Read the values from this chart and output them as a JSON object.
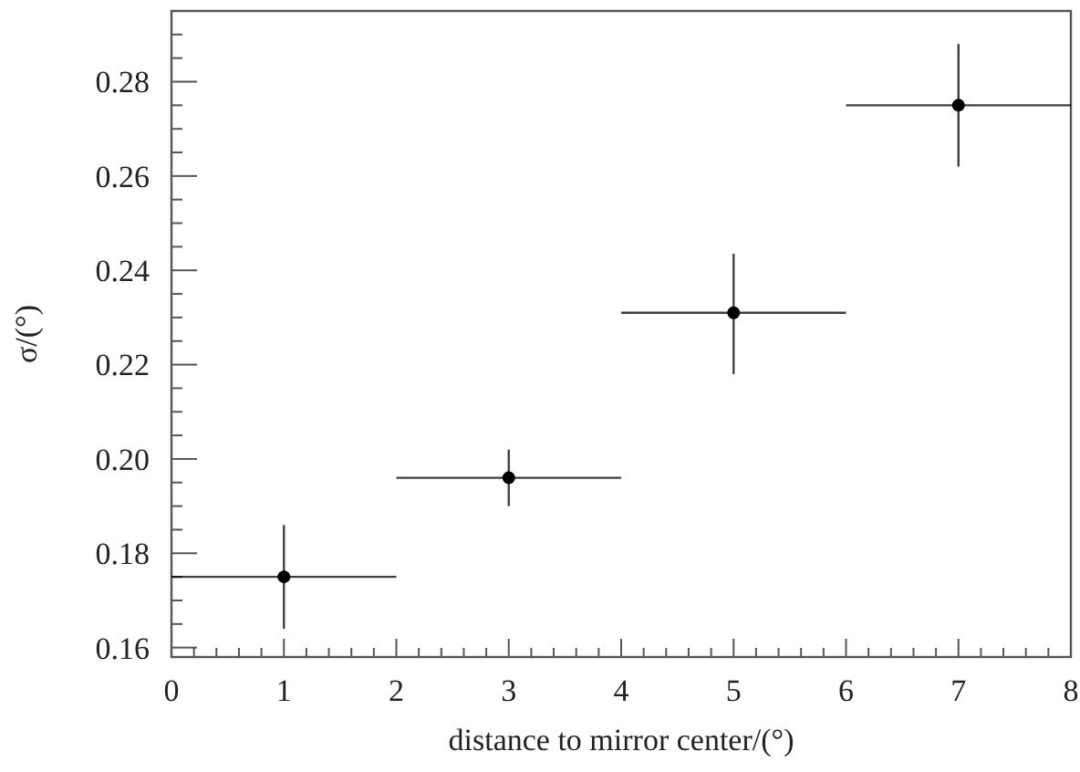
{
  "chart_data": {
    "type": "scatter",
    "xlabel": "distance to mirror center/(°)",
    "ylabel": "σ/(°)",
    "x": [
      1,
      3,
      5,
      7
    ],
    "series": [
      {
        "color": "#000000",
        "values": [
          0.175,
          0.196,
          0.231,
          0.275
        ],
        "errors": [
          [
            0.164,
            0.186
          ],
          [
            0.19,
            0.202
          ],
          [
            0.218,
            0.2435
          ],
          [
            0.262,
            0.288
          ]
        ],
        "xerrors": [
          1,
          1,
          1,
          1
        ]
      }
    ],
    "marker": "circle",
    "xlim": [
      0,
      8
    ],
    "ylim": [
      0.158,
      0.295
    ],
    "xticks": [
      0,
      {
        "value": 0.2,
        "label": null
      },
      {
        "value": 0.4,
        "label": null
      },
      {
        "value": 0.6,
        "label": null
      },
      {
        "value": 0.8,
        "label": null
      },
      1,
      {
        "value": 1.2,
        "label": null
      },
      {
        "value": 1.4,
        "label": null
      },
      {
        "value": 1.6,
        "label": null
      },
      {
        "value": 1.8,
        "label": null
      },
      2,
      {
        "value": 2.2,
        "label": null
      },
      {
        "value": 2.4,
        "label": null
      },
      {
        "value": 2.6,
        "label": null
      },
      {
        "value": 2.8,
        "label": null
      },
      3,
      {
        "value": 3.2,
        "label": null
      },
      {
        "value": 3.4,
        "label": null
      },
      {
        "value": 3.6,
        "label": null
      },
      {
        "value": 3.8,
        "label": null
      },
      4,
      {
        "value": 4.2,
        "label": null
      },
      {
        "value": 4.4,
        "label": null
      },
      {
        "value": 4.6,
        "label": null
      },
      {
        "value": 4.8,
        "label": null
      },
      5,
      {
        "value": 5.2,
        "label": null
      },
      {
        "value": 5.4,
        "label": null
      },
      {
        "value": 5.6,
        "label": null
      },
      {
        "value": 5.8,
        "label": null
      },
      6,
      {
        "value": 6.2,
        "label": null
      },
      {
        "value": 6.4,
        "label": null
      },
      {
        "value": 6.6,
        "label": null
      },
      {
        "value": 6.8,
        "label": null
      },
      7,
      {
        "value": 7.2,
        "label": null
      },
      {
        "value": 7.4,
        "label": null
      },
      {
        "value": 7.6,
        "label": null
      },
      {
        "value": 7.8,
        "label": null
      },
      8
    ],
    "yticks": [
      {
        "value": 0.16,
        "label": "0.16"
      },
      {
        "value": 0.165,
        "label": null
      },
      {
        "value": 0.17,
        "label": null
      },
      {
        "value": 0.175,
        "label": null
      },
      {
        "value": 0.18,
        "label": "0.18"
      },
      {
        "value": 0.185,
        "label": null
      },
      {
        "value": 0.19,
        "label": null
      },
      {
        "value": 0.195,
        "label": null
      },
      {
        "value": 0.2,
        "label": "0.20"
      },
      {
        "value": 0.205,
        "label": null
      },
      {
        "value": 0.21,
        "label": null
      },
      {
        "value": 0.215,
        "label": null
      },
      {
        "value": 0.22,
        "label": "0.22"
      },
      {
        "value": 0.225,
        "label": null
      },
      {
        "value": 0.23,
        "label": null
      },
      {
        "value": 0.235,
        "label": null
      },
      {
        "value": 0.24,
        "label": "0.24"
      },
      {
        "value": 0.245,
        "label": null
      },
      {
        "value": 0.25,
        "label": null
      },
      {
        "value": 0.255,
        "label": null
      },
      {
        "value": 0.26,
        "label": "0.26"
      },
      {
        "value": 0.265,
        "label": null
      },
      {
        "value": 0.27,
        "label": null
      },
      {
        "value": 0.275,
        "label": null
      },
      {
        "value": 0.28,
        "label": "0.28"
      },
      {
        "value": 0.285,
        "label": null
      },
      {
        "value": 0.29,
        "label": null
      }
    ]
  }
}
